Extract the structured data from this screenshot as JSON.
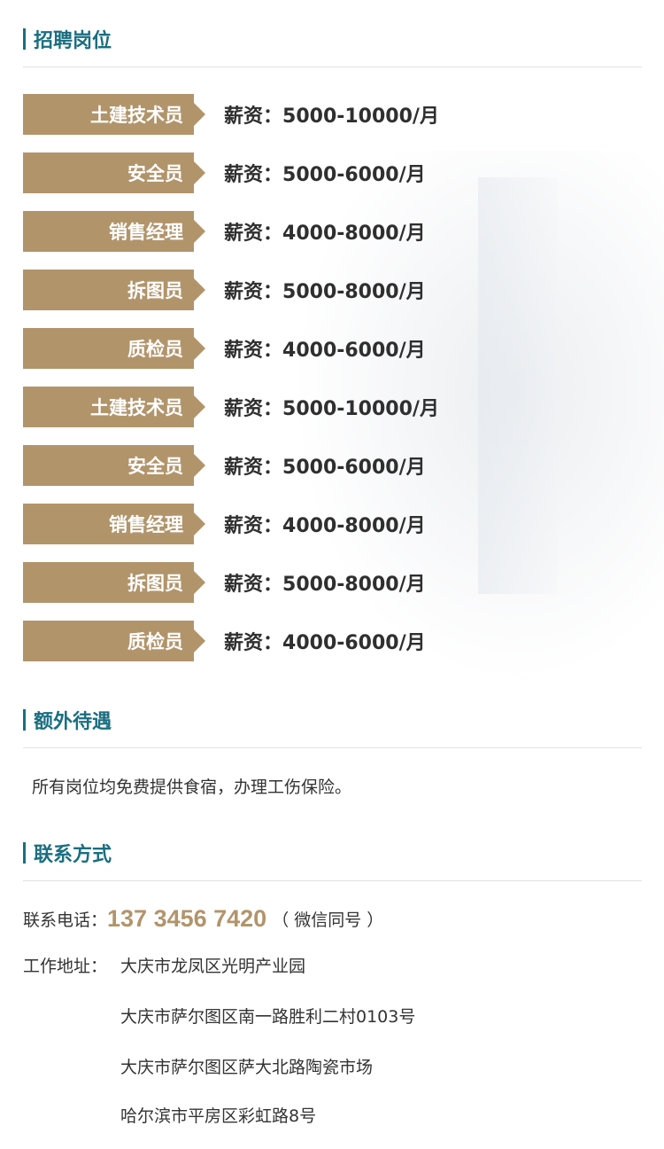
{
  "sections": {
    "jobs": "招聘岗位",
    "benefits": "额外待遇",
    "contact": "联系方式"
  },
  "salary_prefix": "薪资：",
  "jobs": [
    {
      "title": "土建技术员",
      "salary": "5000-10000/月"
    },
    {
      "title": "安全员",
      "salary": "5000-6000/月"
    },
    {
      "title": "销售经理",
      "salary": "4000-8000/月"
    },
    {
      "title": "拆图员",
      "salary": "5000-8000/月"
    },
    {
      "title": "质检员",
      "salary": "4000-6000/月"
    },
    {
      "title": "土建技术员",
      "salary": "5000-10000/月"
    },
    {
      "title": "安全员",
      "salary": "5000-6000/月"
    },
    {
      "title": "销售经理",
      "salary": "4000-8000/月"
    },
    {
      "title": "拆图员",
      "salary": "5000-8000/月"
    },
    {
      "title": "质检员",
      "salary": "4000-6000/月"
    }
  ],
  "benefits_text": "所有岗位均免费提供食宿，办理工伤保险。",
  "contact": {
    "phone_label": "联系电话：",
    "phone": "137 3456 7420",
    "phone_note": "（ 微信同号 ）",
    "address_label": "工作地址：",
    "addresses": [
      "大庆市龙凤区光明产业园",
      "大庆市萨尔图区南一路胜利二村0103号",
      "大庆市萨尔图区萨大北路陶瓷市场",
      "哈尔滨市平房区彩虹路8号"
    ]
  },
  "colors": {
    "accent": "#1a6e80",
    "gold": "#b2946b"
  }
}
